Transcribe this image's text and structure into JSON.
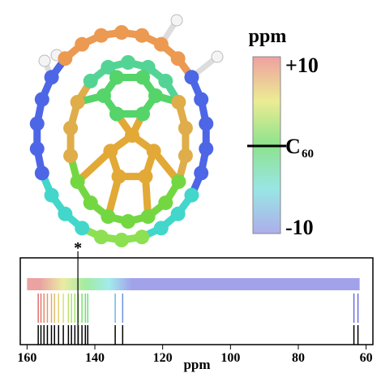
{
  "colorbar": {
    "title": "ppm",
    "ylim": [
      -10,
      10
    ],
    "ticks": [
      {
        "value": 10,
        "label": "+10"
      },
      {
        "value": 0,
        "label": "C",
        "subscript": "60"
      },
      {
        "value": -10,
        "label": "-10"
      }
    ]
  },
  "chart_data": {
    "type": "stick",
    "x_label": "ppm",
    "xlim": [
      162,
      58
    ],
    "xticks": [
      160,
      140,
      120,
      100,
      80,
      60
    ],
    "values": [
      156.7,
      155.9,
      155.0,
      154.0,
      152.8,
      151.9,
      150.7,
      149.3,
      147.8,
      146.9,
      145.9,
      144.9,
      143.8,
      142.8,
      142.1,
      134.0,
      131.8,
      63.6,
      62.4
    ],
    "annotation": {
      "label": "*",
      "x": 145
    }
  }
}
